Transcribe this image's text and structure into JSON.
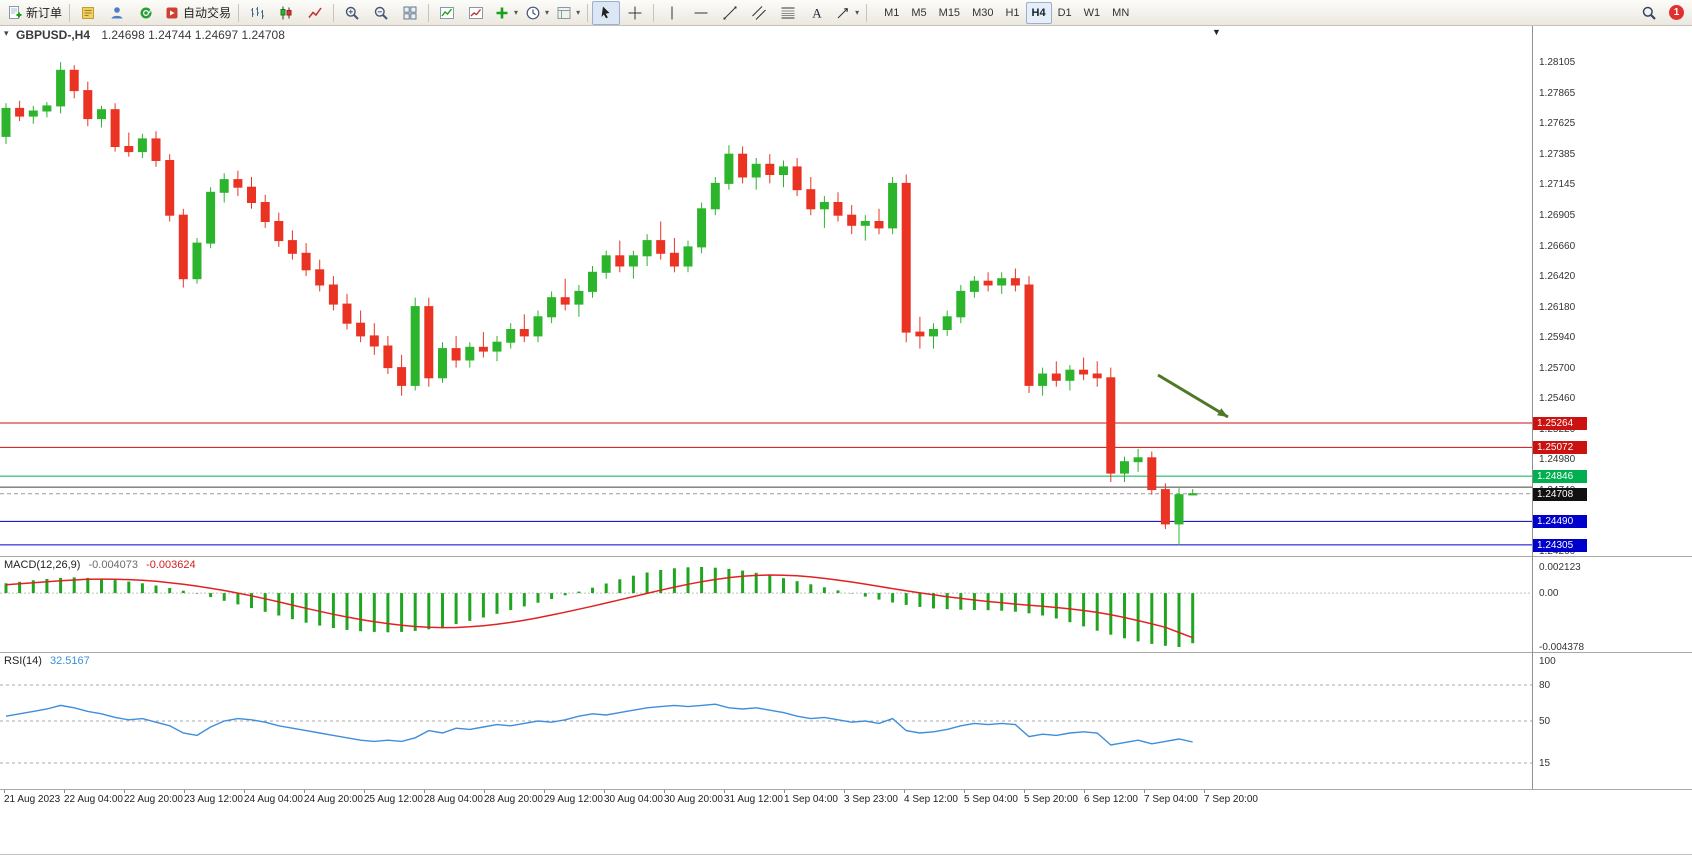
{
  "toolbar": {
    "items": [
      {
        "name": "new-order-button",
        "icon": "new-order",
        "label": "新订单"
      },
      {
        "sep": true
      },
      {
        "name": "market-watch-button",
        "icon": "doc-yellow"
      },
      {
        "name": "profile-button",
        "icon": "person"
      },
      {
        "name": "community-button",
        "icon": "globe"
      },
      {
        "name": "autotrading-button",
        "icon": "autotrade",
        "label": "自动交易"
      },
      {
        "sep": true
      },
      {
        "name": "bar-chart-button",
        "icon": "bars"
      },
      {
        "name": "candlestick-chart-button",
        "icon": "candles"
      },
      {
        "name": "line-chart-button",
        "icon": "line-chart"
      },
      {
        "sep": true
      },
      {
        "name": "zoom-in-button",
        "icon": "zoom-in"
      },
      {
        "name": "zoom-out-button",
        "icon": "zoom-out"
      },
      {
        "name": "tile-windows-button",
        "icon": "tiles"
      },
      {
        "sep": true
      },
      {
        "name": "indicators-button",
        "icon": "indicator"
      },
      {
        "name": "indicator-window-button",
        "icon": "indicator2"
      },
      {
        "name": "add-indicator-button",
        "icon": "plus-green",
        "dropdown": true
      },
      {
        "name": "periods-button",
        "icon": "clock",
        "dropdown": true
      },
      {
        "name": "templates-button",
        "icon": "template",
        "dropdown": true
      },
      {
        "sep": true
      },
      {
        "name": "cursor-tool-button",
        "icon": "cursor",
        "active": true
      },
      {
        "name": "crosshair-tool-button",
        "icon": "crosshair"
      },
      {
        "sep": true
      },
      {
        "name": "vertical-line-tool-button",
        "icon": "vline"
      },
      {
        "name": "horizontal-line-tool-button",
        "icon": "hline"
      },
      {
        "name": "trendline-tool-button",
        "icon": "trend"
      },
      {
        "name": "channel-tool-button",
        "icon": "channel"
      },
      {
        "name": "fibonacci-tool-button",
        "icon": "fibo"
      },
      {
        "name": "text-tool-button",
        "icon": "text"
      },
      {
        "name": "arrows-tool-button",
        "icon": "arrows",
        "dropdown": true
      },
      {
        "sep": true
      }
    ],
    "timeframes": [
      "M1",
      "M5",
      "M15",
      "M30",
      "H1",
      "H4",
      "D1",
      "W1",
      "MN"
    ],
    "active_timeframe": "H4",
    "right": {
      "badge": "1"
    }
  },
  "chart": {
    "title_symbol": "GBPUSD-,H4",
    "title_ohlc": "1.24698 1.24744 1.24697 1.24708",
    "lines": [
      {
        "name": "resistance-line-upper",
        "price": 1.25264,
        "color": "#cc1111",
        "tag": "1.25264",
        "tag_bg": "#cc1111"
      },
      {
        "name": "resistance-line-lower",
        "price": 1.25072,
        "color": "#cc1111",
        "tag": "1.25072",
        "tag_bg": "#cc1111"
      },
      {
        "name": "support-line-green",
        "price": 1.24846,
        "color": "#00b050",
        "tag": "1.24846",
        "tag_bg": "#00b050"
      },
      {
        "name": "support-line-dark",
        "price": 1.2476,
        "color": "#444444"
      },
      {
        "name": "bid-price-line",
        "price": 1.24708,
        "color": "#999999",
        "dash": true,
        "tag": "1.24708",
        "tag_bg": "#111111"
      },
      {
        "name": "support-line-blue-upper",
        "price": 1.2449,
        "color": "#0000cc",
        "tag": "1.24490",
        "tag_bg": "#0000cc"
      },
      {
        "name": "support-line-blue-lower",
        "price": 1.24305,
        "color": "#0000cc",
        "tag": "1.24305",
        "tag_bg": "#0000cc"
      }
    ],
    "arrow": {
      "from": [
        1158,
        349
      ],
      "to": [
        1228,
        391
      ],
      "color": "#4e7a27"
    }
  },
  "colors": {
    "bull": "#2cb42c",
    "bear": "#ea3323",
    "macd": "#1fa51f",
    "signal": "#e02222",
    "rsi": "#3f8edc"
  },
  "chart_data": [
    {
      "type": "candlestick",
      "symbol": "GBPUSD-",
      "timeframe": "H4",
      "last_bar": {
        "open": 1.24698,
        "high": 1.24744,
        "low": 1.24697,
        "close": 1.24708
      },
      "ylim": [
        1.24225,
        1.28373
      ],
      "price_ticks": [
        "1.28105",
        "1.27865",
        "1.27625",
        "1.27385",
        "1.27145",
        "1.26905",
        "1.26660",
        "1.26420",
        "1.26180",
        "1.25940",
        "1.25700",
        "1.25460",
        "1.25220",
        "1.24980",
        "1.24740",
        "1.24500",
        "1.24260"
      ],
      "time_labels": [
        "21 Aug 2023",
        "22 Aug 04:00",
        "22 Aug 20:00",
        "23 Aug 12:00",
        "24 Aug 04:00",
        "24 Aug 20:00",
        "25 Aug 12:00",
        "28 Aug 04:00",
        "28 Aug 20:00",
        "29 Aug 12:00",
        "30 Aug 04:00",
        "30 Aug 20:00",
        "31 Aug 12:00",
        "1 Sep 04:00",
        "3 Sep 23:00",
        "4 Sep 12:00",
        "5 Sep 04:00",
        "5 Sep 20:00",
        "6 Sep 12:00",
        "7 Sep 04:00",
        "7 Sep 20:00"
      ],
      "candles": [
        [
          1.2752,
          1.2778,
          1.2746,
          1.2774
        ],
        [
          1.2774,
          1.278,
          1.2764,
          1.2768
        ],
        [
          1.2768,
          1.2776,
          1.2762,
          1.2772
        ],
        [
          1.2772,
          1.2779,
          1.2767,
          1.2776
        ],
        [
          1.2776,
          1.28105,
          1.277,
          1.2804
        ],
        [
          1.2804,
          1.2808,
          1.2782,
          1.2788
        ],
        [
          1.2788,
          1.2795,
          1.276,
          1.2766
        ],
        [
          1.2766,
          1.2776,
          1.2759,
          1.2773
        ],
        [
          1.2773,
          1.2778,
          1.274,
          1.2744
        ],
        [
          1.2744,
          1.2755,
          1.2736,
          1.274
        ],
        [
          1.274,
          1.2754,
          1.2735,
          1.275
        ],
        [
          1.275,
          1.2756,
          1.2728,
          1.2733
        ],
        [
          1.2733,
          1.2738,
          1.2685,
          1.269
        ],
        [
          1.269,
          1.2695,
          1.2633,
          1.264
        ],
        [
          1.264,
          1.2672,
          1.2636,
          1.2668
        ],
        [
          1.2668,
          1.2712,
          1.2664,
          1.2708
        ],
        [
          1.2708,
          1.2723,
          1.27,
          1.2718
        ],
        [
          1.2718,
          1.2725,
          1.2705,
          1.2712
        ],
        [
          1.2712,
          1.272,
          1.2695,
          1.27
        ],
        [
          1.27,
          1.2706,
          1.268,
          1.2685
        ],
        [
          1.2685,
          1.2692,
          1.2665,
          1.267
        ],
        [
          1.267,
          1.2678,
          1.2655,
          1.266
        ],
        [
          1.266,
          1.2668,
          1.2642,
          1.2647
        ],
        [
          1.2647,
          1.2655,
          1.263,
          1.2635
        ],
        [
          1.2635,
          1.2642,
          1.2615,
          1.262
        ],
        [
          1.262,
          1.2628,
          1.26,
          1.2605
        ],
        [
          1.2605,
          1.2615,
          1.259,
          1.2595
        ],
        [
          1.2595,
          1.2605,
          1.258,
          1.2587
        ],
        [
          1.2587,
          1.2595,
          1.2565,
          1.257
        ],
        [
          1.257,
          1.258,
          1.2548,
          1.2556
        ],
        [
          1.2556,
          1.2625,
          1.2552,
          1.2618
        ],
        [
          1.2618,
          1.2625,
          1.2555,
          1.2562
        ],
        [
          1.2562,
          1.259,
          1.2558,
          1.2585
        ],
        [
          1.2585,
          1.2595,
          1.257,
          1.2576
        ],
        [
          1.2576,
          1.259,
          1.257,
          1.2586
        ],
        [
          1.2586,
          1.2598,
          1.2578,
          1.2583
        ],
        [
          1.2583,
          1.2595,
          1.2575,
          1.259
        ],
        [
          1.259,
          1.2605,
          1.2585,
          1.26
        ],
        [
          1.26,
          1.2612,
          1.259,
          1.2595
        ],
        [
          1.2595,
          1.2615,
          1.259,
          1.261
        ],
        [
          1.261,
          1.263,
          1.2605,
          1.2625
        ],
        [
          1.2625,
          1.264,
          1.2615,
          1.262
        ],
        [
          1.262,
          1.2635,
          1.261,
          1.263
        ],
        [
          1.263,
          1.265,
          1.2625,
          1.2645
        ],
        [
          1.2645,
          1.2662,
          1.264,
          1.2658
        ],
        [
          1.2658,
          1.267,
          1.2645,
          1.265
        ],
        [
          1.265,
          1.2662,
          1.264,
          1.2658
        ],
        [
          1.2658,
          1.2675,
          1.265,
          1.267
        ],
        [
          1.267,
          1.2685,
          1.2655,
          1.266
        ],
        [
          1.266,
          1.2672,
          1.2645,
          1.265
        ],
        [
          1.265,
          1.267,
          1.2645,
          1.2665
        ],
        [
          1.2665,
          1.27,
          1.266,
          1.2695
        ],
        [
          1.2695,
          1.272,
          1.269,
          1.2715
        ],
        [
          1.2715,
          1.2745,
          1.271,
          1.2738
        ],
        [
          1.2738,
          1.2744,
          1.2715,
          1.272
        ],
        [
          1.272,
          1.2735,
          1.271,
          1.273
        ],
        [
          1.273,
          1.2738,
          1.2715,
          1.2722
        ],
        [
          1.2722,
          1.2733,
          1.2712,
          1.2728
        ],
        [
          1.2728,
          1.2735,
          1.2705,
          1.271
        ],
        [
          1.271,
          1.272,
          1.269,
          1.2695
        ],
        [
          1.2695,
          1.2705,
          1.268,
          1.27
        ],
        [
          1.27,
          1.2708,
          1.2685,
          1.269
        ],
        [
          1.269,
          1.2698,
          1.2675,
          1.2682
        ],
        [
          1.2682,
          1.269,
          1.267,
          1.2685
        ],
        [
          1.2685,
          1.2695,
          1.2675,
          1.268
        ],
        [
          1.268,
          1.272,
          1.2675,
          1.2715
        ],
        [
          1.2715,
          1.2722,
          1.259,
          1.2598
        ],
        [
          1.2598,
          1.261,
          1.2585,
          1.2595
        ],
        [
          1.2595,
          1.2605,
          1.2585,
          1.26
        ],
        [
          1.26,
          1.2615,
          1.2595,
          1.261
        ],
        [
          1.261,
          1.2635,
          1.2605,
          1.263
        ],
        [
          1.263,
          1.2642,
          1.2625,
          1.2638
        ],
        [
          1.2638,
          1.2645,
          1.263,
          1.2635
        ],
        [
          1.2635,
          1.2645,
          1.2628,
          1.264
        ],
        [
          1.264,
          1.2648,
          1.263,
          1.2635
        ],
        [
          1.2635,
          1.2642,
          1.255,
          1.2556
        ],
        [
          1.2556,
          1.257,
          1.2548,
          1.2565
        ],
        [
          1.2565,
          1.2575,
          1.2555,
          1.256
        ],
        [
          1.256,
          1.2572,
          1.2552,
          1.2568
        ],
        [
          1.2568,
          1.2578,
          1.256,
          1.2565
        ],
        [
          1.2565,
          1.2575,
          1.2555,
          1.2562
        ],
        [
          1.2562,
          1.257,
          1.248,
          1.2487
        ],
        [
          1.2487,
          1.25,
          1.248,
          1.2496
        ],
        [
          1.2496,
          1.2506,
          1.2488,
          1.2499
        ],
        [
          1.2499,
          1.2504,
          1.247,
          1.2474
        ],
        [
          1.2474,
          1.2479,
          1.2443,
          1.2447
        ],
        [
          1.2447,
          1.2475,
          1.243,
          1.247
        ],
        [
          1.24698,
          1.24744,
          1.24697,
          1.24708
        ]
      ]
    },
    {
      "type": "bar",
      "name": "MACD(12,26,9)",
      "display_main": "-0.004073",
      "display_signal": "-0.003624",
      "axis_labels": [
        "0.002123",
        "0.00",
        "-0.004378"
      ],
      "ylim": [
        -0.004378,
        0.002123
      ],
      "values": [
        0.0008,
        0.00092,
        0.00104,
        0.00115,
        0.00124,
        0.00128,
        0.00124,
        0.00116,
        0.00106,
        0.00094,
        0.0008,
        0.00062,
        0.00042,
        0.0002,
        -4e-05,
        -0.00032,
        -0.00062,
        -0.00092,
        -0.00122,
        -0.00152,
        -0.00182,
        -0.00212,
        -0.0024,
        -0.00264,
        -0.00284,
        -0.00299,
        -0.00309,
        -0.00315,
        -0.00318,
        -0.00315,
        -0.00307,
        -0.00294,
        -0.00276,
        -0.00252,
        -0.00226,
        -0.00198,
        -0.00168,
        -0.00138,
        -0.00108,
        -0.00078,
        -0.00048,
        -0.00018,
        0.00012,
        0.00044,
        0.00078,
        0.00112,
        0.00142,
        0.00168,
        0.00188,
        0.00202,
        0.0021,
        0.00212,
        0.00207,
        0.00197,
        0.00183,
        0.00165,
        0.00144,
        0.00121,
        0.00097,
        0.00072,
        0.00047,
        0.00022,
        -3e-05,
        -0.00028,
        -0.00053,
        -0.00076,
        -0.00096,
        -0.00112,
        -0.00124,
        -0.00131,
        -0.00135,
        -0.00137,
        -0.00139,
        -0.00143,
        -0.00151,
        -0.00164,
        -0.00182,
        -0.00206,
        -0.00236,
        -0.0027,
        -0.00305,
        -0.00338,
        -0.00367,
        -0.00392,
        -0.00413,
        -0.00428,
        -0.004378,
        -0.004073
      ],
      "signal": [
        0.00068,
        0.00076,
        0.00084,
        0.00092,
        0.001,
        0.00107,
        0.00112,
        0.00114,
        0.00113,
        0.0011,
        0.00104,
        0.00096,
        0.00085,
        0.00072,
        0.00057,
        0.0004,
        0.00021,
        0.0,
        -0.00022,
        -0.00046,
        -0.00071,
        -0.00097,
        -0.00123,
        -0.00148,
        -0.00172,
        -0.00194,
        -0.00214,
        -0.00232,
        -0.00248,
        -0.00261,
        -0.00271,
        -0.00277,
        -0.0028,
        -0.00279,
        -0.00274,
        -0.00265,
        -0.00253,
        -0.00238,
        -0.0022,
        -0.002,
        -0.00178,
        -0.00155,
        -0.00131,
        -0.00106,
        -0.0008,
        -0.00054,
        -0.00028,
        -2e-05,
        0.00024,
        0.00049,
        0.00072,
        0.00093,
        0.00111,
        0.00126,
        0.00137,
        0.00144,
        0.00147,
        0.00146,
        0.00141,
        0.00132,
        0.0012,
        0.00106,
        0.0009,
        0.00073,
        0.00055,
        0.00037,
        0.00019,
        2e-05,
        -0.00014,
        -0.00029,
        -0.00043,
        -0.00056,
        -0.00068,
        -0.00079,
        -0.00089,
        -0.00098,
        -0.00107,
        -0.00117,
        -0.00128,
        -0.00141,
        -0.00157,
        -0.00176,
        -0.00198,
        -0.00223,
        -0.0025,
        -0.00278,
        -0.0032,
        -0.003624
      ]
    },
    {
      "type": "line",
      "name": "RSI(14)",
      "display": "32.5167",
      "axis_labels": [
        100,
        80,
        50,
        15
      ],
      "levels": [
        80,
        50,
        15
      ],
      "ylim": [
        0,
        100
      ],
      "values": [
        54,
        56,
        58,
        60,
        63,
        61,
        58,
        56,
        53,
        51,
        52,
        49,
        46,
        40,
        38,
        45,
        50,
        52,
        51,
        49,
        46,
        44,
        42,
        40,
        38,
        36,
        34,
        33,
        34,
        33,
        36,
        42,
        40,
        44,
        43,
        45,
        47,
        46,
        48,
        50,
        49,
        51,
        54,
        56,
        55,
        57,
        59,
        61,
        62,
        63,
        62,
        63,
        64,
        61,
        60,
        61,
        59,
        57,
        54,
        52,
        53,
        51,
        49,
        50,
        48,
        52,
        42,
        40,
        41,
        43,
        46,
        48,
        47,
        48,
        47,
        37,
        39,
        38,
        40,
        41,
        40,
        30,
        32,
        34,
        31,
        33,
        35,
        32.5167
      ]
    }
  ]
}
